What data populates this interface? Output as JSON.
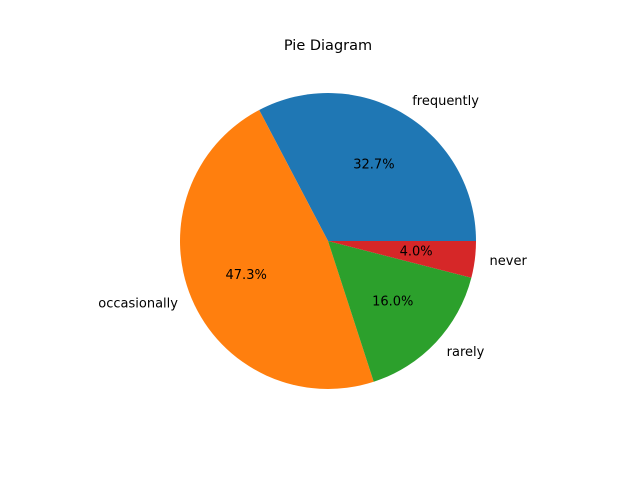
{
  "chart_data": {
    "type": "pie",
    "title": "Pie Diagram",
    "slices": [
      {
        "label": "frequently",
        "value": 32.7,
        "pct_label": "32.7%",
        "color": "#1f77b4"
      },
      {
        "label": "occasionally",
        "value": 47.3,
        "pct_label": "47.3%",
        "color": "#ff7f0e"
      },
      {
        "label": "rarely",
        "value": 16.0,
        "pct_label": "16.0%",
        "color": "#2ca02c"
      },
      {
        "label": "never",
        "value": 4.0,
        "pct_label": "4.0%",
        "color": "#d62728"
      }
    ],
    "start_angle": 0,
    "direction": "counterclockwise",
    "legend": false
  }
}
